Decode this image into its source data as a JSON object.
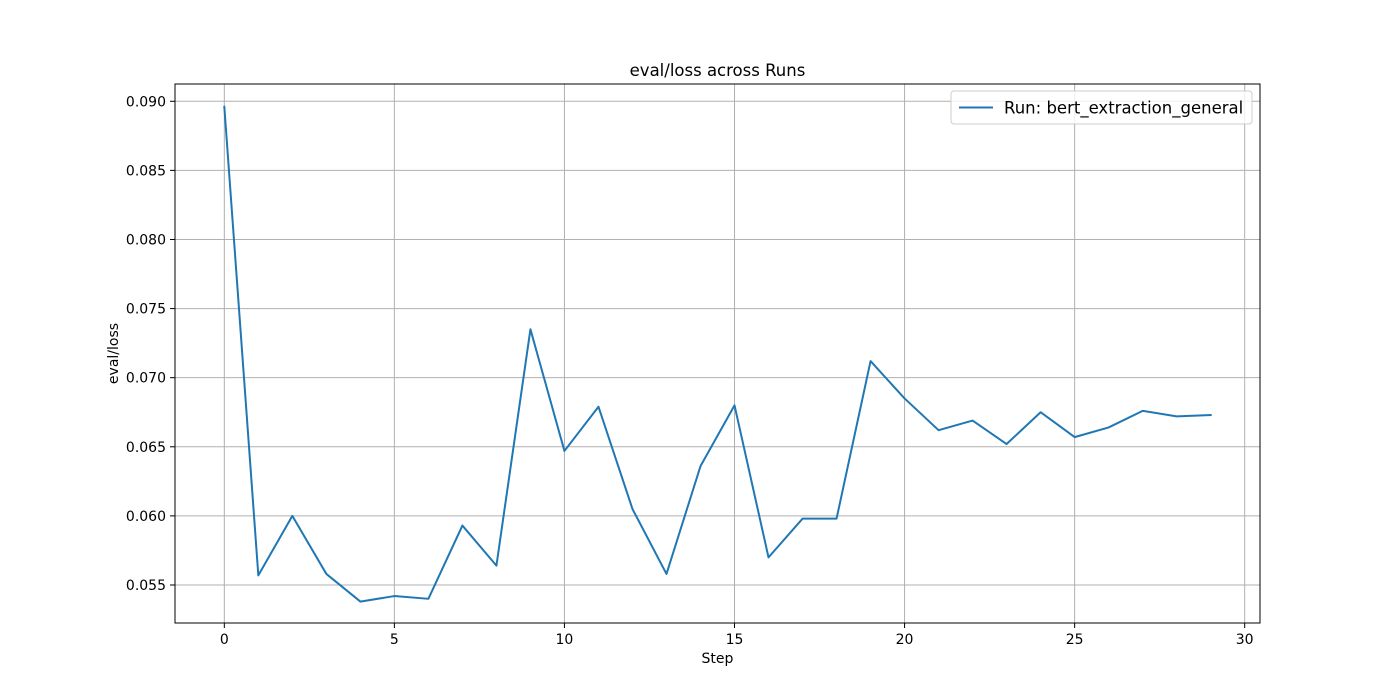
{
  "chart_data": {
    "type": "line",
    "title": "eval/loss across Runs",
    "xlabel": "Step",
    "ylabel": "eval/loss",
    "xlim": [
      -1.45,
      30.45
    ],
    "ylim": [
      0.05225,
      0.09125
    ],
    "xticks": [
      0,
      5,
      10,
      15,
      20,
      25,
      30
    ],
    "xtick_labels": [
      "0",
      "5",
      "10",
      "15",
      "20",
      "25",
      "30"
    ],
    "yticks": [
      0.055,
      0.06,
      0.065,
      0.07,
      0.075,
      0.08,
      0.085,
      0.09
    ],
    "ytick_labels": [
      "0.055",
      "0.060",
      "0.065",
      "0.070",
      "0.075",
      "0.080",
      "0.085",
      "0.090"
    ],
    "grid": true,
    "legend_position": "top-right",
    "colors": {
      "series": "#1f77b4",
      "grid": "#b0b0b0",
      "axes": "#000000",
      "legend_border": "#cccccc"
    },
    "series": [
      {
        "name": "Run: bert_extraction_general",
        "x": [
          0,
          1,
          2,
          3,
          4,
          5,
          6,
          7,
          8,
          9,
          10,
          11,
          12,
          13,
          14,
          15,
          16,
          17,
          18,
          19,
          20,
          21,
          22,
          23,
          24,
          25,
          26,
          27,
          28,
          29
        ],
        "y": [
          0.0896,
          0.0557,
          0.06,
          0.0558,
          0.0538,
          0.0542,
          0.054,
          0.0593,
          0.0564,
          0.0735,
          0.0647,
          0.0679,
          0.0605,
          0.0558,
          0.0636,
          0.068,
          0.057,
          0.0598,
          0.0598,
          0.0712,
          0.0685,
          0.0662,
          0.0669,
          0.0652,
          0.0675,
          0.0657,
          0.0664,
          0.0676,
          0.0672,
          0.0673
        ]
      }
    ]
  }
}
